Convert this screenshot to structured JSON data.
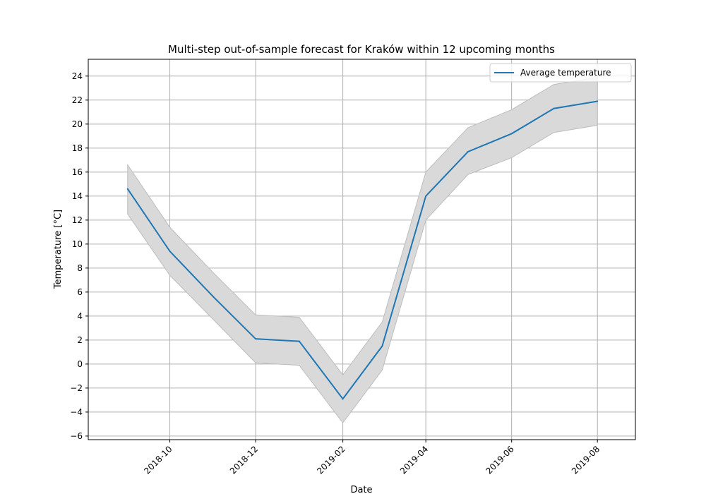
{
  "chart_data": {
    "type": "line",
    "title": "Multi-step out-of-sample forecast for Kraków within 12 upcoming months",
    "xlabel": "Date",
    "ylabel": "Temperature [°C]",
    "x": [
      "2018-09",
      "2018-10",
      "2018-11",
      "2018-12",
      "2019-01",
      "2019-02",
      "2019-03",
      "2019-04",
      "2019-05",
      "2019-06",
      "2019-07",
      "2019-08"
    ],
    "series": [
      {
        "name": "Average temperature",
        "color": "#1f77b4",
        "values": [
          14.6,
          9.4,
          5.6,
          2.1,
          1.9,
          -2.9,
          1.5,
          14.0,
          17.7,
          19.2,
          21.3,
          21.9
        ],
        "lower": [
          12.5,
          7.4,
          3.7,
          0.1,
          -0.1,
          -4.9,
          -0.5,
          12.0,
          15.8,
          17.2,
          19.3,
          19.9
        ],
        "upper": [
          16.6,
          11.4,
          7.6,
          4.1,
          3.9,
          -0.9,
          3.5,
          16.0,
          19.7,
          21.2,
          23.3,
          23.9
        ]
      }
    ],
    "band_color": "#d9d9d9",
    "xticks": [
      "2018-10",
      "2018-12",
      "2019-02",
      "2019-04",
      "2019-06",
      "2019-08"
    ],
    "yticks": [
      -6,
      -4,
      -2,
      0,
      2,
      4,
      6,
      8,
      10,
      12,
      14,
      16,
      18,
      20,
      22,
      24
    ],
    "xlim": [
      "2018-08-04",
      "2019-08-28"
    ],
    "ylim": [
      -6.3,
      25.4
    ],
    "grid": true,
    "legend": "upper right"
  }
}
